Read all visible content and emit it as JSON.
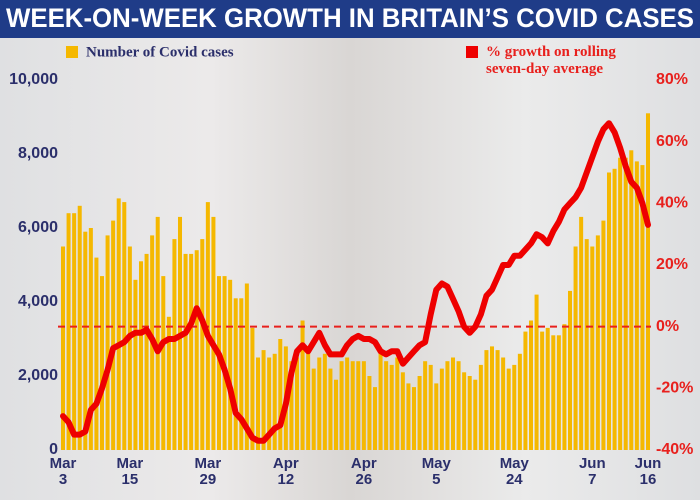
{
  "chart_data": {
    "type": "bar_line",
    "title": "WEEK-ON-WEEK GROWTH IN BRITAIN’S COVID CASES",
    "categories": [
      "Mar 3",
      null,
      null,
      null,
      null,
      null,
      null,
      null,
      null,
      null,
      null,
      null,
      "Mar 15",
      null,
      null,
      null,
      null,
      null,
      null,
      null,
      null,
      null,
      null,
      null,
      null,
      null,
      "Mar 29",
      null,
      null,
      null,
      null,
      null,
      null,
      null,
      null,
      null,
      null,
      null,
      null,
      null,
      "Apr 12",
      null,
      null,
      null,
      null,
      null,
      null,
      null,
      null,
      null,
      null,
      null,
      null,
      null,
      "Apr 26",
      null,
      null,
      null,
      null,
      null,
      null,
      null,
      null,
      null,
      null,
      null,
      null,
      "May 5",
      null,
      null,
      null,
      null,
      null,
      null,
      null,
      null,
      null,
      null,
      null,
      null,
      null,
      "May 24",
      null,
      null,
      null,
      null,
      null,
      null,
      null,
      null,
      null,
      null,
      null,
      null,
      null,
      "Jun 7",
      null,
      null,
      null,
      null,
      null,
      null,
      null,
      null,
      null,
      "Jun 16"
    ],
    "series": [
      {
        "name": "Number of Covid cases",
        "type": "bar",
        "color": "#f5b800",
        "axis": "y",
        "values": [
          5500,
          6400,
          6400,
          6600,
          5900,
          6000,
          5200,
          4700,
          5800,
          6200,
          6800,
          6700,
          5500,
          4600,
          5100,
          5300,
          5800,
          6300,
          4700,
          3600,
          5700,
          6300,
          5300,
          5300,
          5400,
          5700,
          6700,
          6300,
          4700,
          4700,
          4600,
          4100,
          4100,
          4500,
          3300,
          2500,
          2700,
          2500,
          2600,
          3000,
          2800,
          2400,
          2500,
          3500,
          2700,
          2200,
          2500,
          2600,
          2200,
          1900,
          2400,
          2500,
          2400,
          2400,
          2400,
          2000,
          1700,
          2700,
          2400,
          2300,
          2500,
          2100,
          1800,
          1700,
          2000,
          2400,
          2300,
          1800,
          2200,
          2400,
          2500,
          2400,
          2100,
          2000,
          1900,
          2300,
          2700,
          2800,
          2700,
          2500,
          2200,
          2300,
          2600,
          3200,
          3500,
          4200,
          3200,
          3300,
          3100,
          3100,
          3400,
          4300,
          5500,
          6300,
          5700,
          5500,
          5800,
          6200,
          7500,
          7600,
          7900,
          7900,
          8100,
          7800,
          7700,
          9100
        ]
      },
      {
        "name": "% growth on rolling seven-day average",
        "type": "line",
        "color": "#ee0000",
        "axis": "y2",
        "values": [
          -29,
          -31,
          -35,
          -35,
          -34,
          -27,
          -25,
          -20,
          -14,
          -7,
          -6,
          -5,
          -3,
          -2,
          -2,
          -1,
          -4,
          -8,
          -5,
          -4,
          -4,
          -3,
          -2,
          1,
          6,
          2,
          -3,
          -6,
          -9,
          -14,
          -20,
          -28,
          -30,
          -33,
          -36,
          -37,
          -37,
          -35,
          -33,
          -32,
          -25,
          -15,
          -8,
          -6,
          -8,
          -5,
          -2,
          -6,
          -9,
          -9,
          -9,
          -6,
          -4,
          -3,
          -4,
          -4,
          -5,
          -8,
          -9,
          -8,
          -8,
          -12,
          -10,
          -8,
          -6,
          -5,
          4,
          12,
          14,
          13,
          9,
          5,
          0,
          -2,
          0,
          4,
          10,
          12,
          16,
          20,
          20,
          23,
          23,
          25,
          27,
          30,
          29,
          27,
          31,
          34,
          38,
          40,
          42,
          45,
          50,
          55,
          60,
          64,
          66,
          63,
          58,
          52,
          47,
          45,
          40,
          33
        ]
      }
    ],
    "ylim": [
      0,
      10000
    ],
    "yticks": [
      0,
      {
        "value": 2000,
        "label": "2,000"
      },
      {
        "value": 4000,
        "label": "4,000"
      },
      {
        "value": 6000,
        "label": "6,000"
      },
      {
        "value": 8000,
        "label": "8,000"
      },
      {
        "value": 10000,
        "label": "10,000"
      }
    ],
    "y2lim": [
      -40,
      80
    ],
    "y2ticks": [
      {
        "value": -40,
        "label": "-40%"
      },
      {
        "value": -20,
        "label": "-20%"
      },
      {
        "value": 0,
        "label": "0%"
      },
      {
        "value": 20,
        "label": "20%"
      },
      {
        "value": 40,
        "label": "40%"
      },
      {
        "value": 60,
        "label": "60%"
      },
      {
        "value": 80,
        "label": "80%"
      }
    ],
    "reference_line": {
      "axis": "y2",
      "value": 0,
      "color": "#e8201d"
    }
  }
}
